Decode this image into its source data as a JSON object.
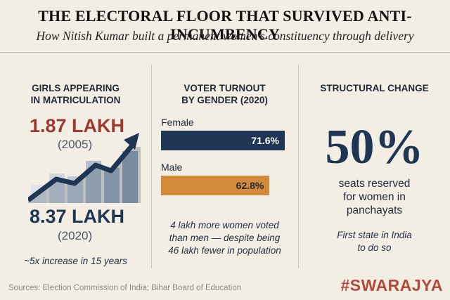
{
  "header": {
    "title": "THE ELECTORAL FLOOR THAT SURVIVED ANTI-INCUMBENCY",
    "subtitle": "How Nitish Kumar built a permanent women’s constituency through delivery"
  },
  "colors": {
    "background": "#f3eee3",
    "navy": "#1e3654",
    "crimson": "#9b3a32",
    "orange": "#d38b3a",
    "brand": "#b24a3c"
  },
  "panel1": {
    "heading_line1": "GIRLS APPEARING",
    "heading_line2": "IN MATRICULATION",
    "value_2005": "1.87 LAKH",
    "year_2005": "(2005)",
    "value_2020": "8.37 LAKH",
    "year_2020": "(2020)",
    "note": "~5x increase in 15 years",
    "trend_icon": "rising-arrow-icon"
  },
  "panel2": {
    "heading_line1": "VOTER TURNOUT",
    "heading_line2": "BY GENDER (2020)",
    "note_line1": "4 lakh more women voted",
    "note_line2": "than men — despite being",
    "note_line3": "46 lakh fewer in population"
  },
  "panel3": {
    "heading": "STRUCTURAL CHANGE",
    "big_value": "50%",
    "line1": "seats reserved",
    "line2": "for women in",
    "line3": "panchayats",
    "note_line1": "First state in India",
    "note_line2": "to do so"
  },
  "chart_data": [
    {
      "type": "bar",
      "title": "VOTER TURNOUT BY GENDER (2020)",
      "orientation": "horizontal",
      "categories": [
        "Female",
        "Male"
      ],
      "values": [
        71.6,
        62.8
      ],
      "value_labels": [
        "71.6%",
        "62.8%"
      ],
      "xlim": [
        0,
        100
      ],
      "colors": [
        "#1e3654",
        "#d38b3a"
      ]
    },
    {
      "type": "line",
      "title": "GIRLS APPEARING IN MATRICULATION",
      "x": [
        2005,
        2020
      ],
      "values": [
        1.87,
        8.37
      ],
      "unit": "lakh"
    }
  ],
  "footer": {
    "sources": "Sources: Election Commission of India; Bihar Board of Education",
    "brand": "#SWARAJYA"
  }
}
